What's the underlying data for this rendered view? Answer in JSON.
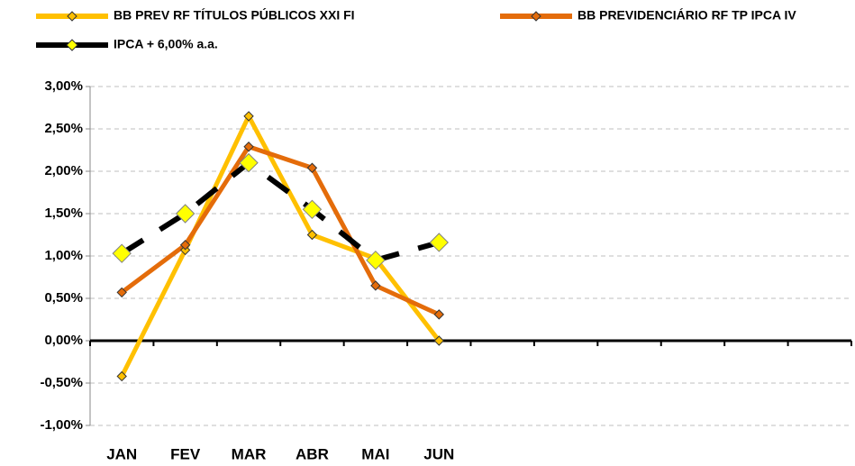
{
  "chart_data": {
    "type": "line",
    "categories": [
      "JAN",
      "FEV",
      "MAR",
      "ABR",
      "MAI",
      "JUN",
      null,
      null,
      null,
      null,
      null,
      null
    ],
    "series": [
      {
        "name": "BB PREV RF TÍTULOS PÚBLICOS XXI FI",
        "color": "#FFC000",
        "marker_color": "#FFC000",
        "values": [
          -0.42,
          1.07,
          2.65,
          1.25,
          0.97,
          0.0,
          null,
          null,
          null,
          null,
          null,
          null
        ]
      },
      {
        "name": "BB PREVIDENCIÁRIO RF TP IPCA IV",
        "color": "#E46C0A",
        "marker_color": "#E46C0A",
        "values": [
          0.57,
          1.13,
          2.29,
          2.04,
          0.65,
          0.31,
          null,
          null,
          null,
          null,
          null,
          null
        ]
      },
      {
        "name": "IPCA + 6,00% a.a.",
        "color": "#000000",
        "marker_color": "#FFFF00",
        "dashed": true,
        "values": [
          1.03,
          1.5,
          2.1,
          1.55,
          0.95,
          1.16,
          null,
          null,
          null,
          null,
          null,
          null
        ]
      }
    ],
    "ylim": [
      -1,
      3
    ],
    "yticks": [
      {
        "value": -1,
        "label": "-1,00%"
      },
      {
        "value": -0.5,
        "label": "-0,50%"
      },
      {
        "value": 0,
        "label": "0,00%"
      },
      {
        "value": 0.5,
        "label": "0,50%"
      },
      {
        "value": 1,
        "label": "1,00%"
      },
      {
        "value": 1.5,
        "label": "1,50%"
      },
      {
        "value": 2,
        "label": "2,00%"
      },
      {
        "value": 2.5,
        "label": "2,50%"
      },
      {
        "value": 3,
        "label": "3,00%"
      }
    ],
    "grid": true
  }
}
